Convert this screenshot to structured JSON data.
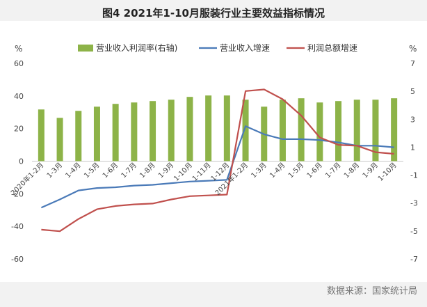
{
  "title": "图4  2021年1-10月服装行业主要效益指标情况",
  "source": "数据来源：国家统计局",
  "colors": {
    "bar": "#8db348",
    "revenue_line": "#4a7ab8",
    "profit_line": "#c0504d"
  },
  "chart_data": {
    "type": "bar",
    "left_axis_unit": "%",
    "right_axis_unit": "%",
    "left_ticks": [
      "60",
      "40",
      "20",
      "0",
      "-20",
      "-40",
      "-60"
    ],
    "right_ticks": [
      "7",
      "5",
      "3",
      "1",
      "-1",
      "-3",
      "-5",
      "-7"
    ],
    "ylim_left": [
      -60,
      60
    ],
    "ylim_right": [
      -7,
      7
    ],
    "grid": false,
    "legend_position": "top",
    "categories": [
      "2020年1-2月",
      "1-3月",
      "1-4月",
      "1-5月",
      "1-6月",
      "1-7月",
      "1-8月",
      "1-9月",
      "1-10月",
      "1-11月",
      "1-12月",
      "2021年1-2月",
      "1-3月",
      "1-4月",
      "1-5月",
      "1-6月",
      "1-7月",
      "1-8月",
      "1-9月",
      "1-10月"
    ],
    "series": [
      {
        "name": "营业收入利润率(右轴)",
        "type": "bar",
        "axis": "right",
        "values": [
          3.7,
          3.1,
          3.6,
          3.9,
          4.1,
          4.2,
          4.3,
          4.4,
          4.6,
          4.7,
          4.7,
          4.4,
          3.9,
          4.4,
          4.5,
          4.2,
          4.3,
          4.4,
          4.4,
          4.5
        ]
      },
      {
        "name": "营业收入增速",
        "type": "line",
        "axis": "left",
        "values": [
          -28.5,
          -23.5,
          -18,
          -16.5,
          -16,
          -15,
          -14.5,
          -13.5,
          -12.5,
          -12,
          -11.5,
          21.5,
          16.5,
          13.5,
          13.5,
          13,
          11.5,
          9.5,
          9.5,
          8.5
        ]
      },
      {
        "name": "利润总额增速",
        "type": "line",
        "axis": "left",
        "values": [
          -42,
          -43,
          -35.5,
          -29.5,
          -27.5,
          -26.5,
          -26,
          -23.5,
          -21.5,
          -21,
          -20.5,
          43,
          44,
          38,
          28,
          14.5,
          10,
          9.5,
          5.5,
          4.5
        ]
      }
    ]
  }
}
